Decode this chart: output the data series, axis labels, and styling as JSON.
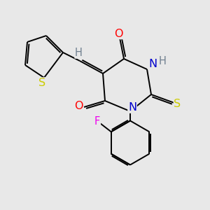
{
  "bg_color": "#e8e8e8",
  "bond_color": "#000000",
  "atom_colors": {
    "O": "#ff0000",
    "N": "#0000cd",
    "S_thio": "#cccc00",
    "S_th": "#cccc00",
    "F": "#ee00ee",
    "H": "#708090",
    "C": "#000000"
  },
  "lw": 1.4,
  "fontsize": 10.5
}
